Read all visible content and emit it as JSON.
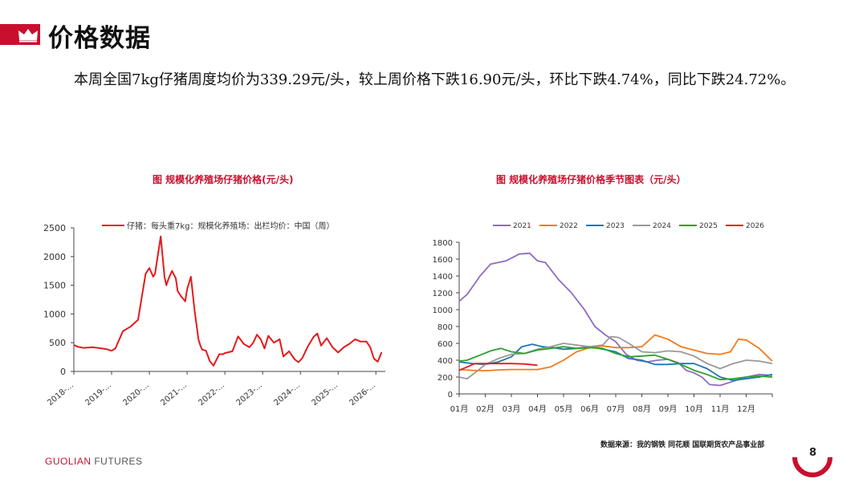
{
  "header": {
    "title": "价格数据"
  },
  "summary": "本周全国7kg仔猪周度均价为339.29元/头，较上周价格下跌16.90元/头，环比下跌4.74%，同比下跌24.72%。",
  "footer": {
    "brand_red": "GUOLIAN",
    "brand_gray": " FUTURES",
    "page": "8",
    "source": "数据来源：我的钢铁  同花顺  国联期货农产品事业部"
  },
  "colors": {
    "accent": "#c8102e"
  },
  "chart_data": [
    {
      "type": "line",
      "title": "图    规模化养殖场仔猪价格(元/头)",
      "legend": "仔猪：每头重7kg：规模化养殖场：出栏均价：中国（周）",
      "legend_position": "top-right",
      "color": "#e41a1c",
      "x_tick_labels": [
        "2018-...",
        "2019-...",
        "2020-...",
        "2021-...",
        "2022-...",
        "2023-...",
        "2024-...",
        "2025-...",
        "2026-..."
      ],
      "x_tick_values": [
        2018.0,
        2019.0,
        2020.0,
        2021.0,
        2022.0,
        2023.0,
        2024.0,
        2025.0,
        2026.0
      ],
      "xlim": [
        2018.0,
        2026.25
      ],
      "ylim": [
        0,
        2500
      ],
      "y_ticks": [
        0,
        500,
        1000,
        1500,
        2000,
        2500
      ],
      "x": [
        2018.0,
        2018.1,
        2018.25,
        2018.5,
        2018.75,
        2018.85,
        2019.0,
        2019.1,
        2019.3,
        2019.5,
        2019.7,
        2019.8,
        2019.9,
        2020.0,
        2020.1,
        2020.15,
        2020.3,
        2020.4,
        2020.45,
        2020.5,
        2020.6,
        2020.7,
        2020.75,
        2020.85,
        2020.95,
        2021.0,
        2021.1,
        2021.2,
        2021.3,
        2021.35,
        2021.4,
        2021.5,
        2021.6,
        2021.7,
        2021.85,
        2021.95,
        2022.0,
        2022.2,
        2022.35,
        2022.5,
        2022.65,
        2022.75,
        2022.85,
        2022.95,
        2023.05,
        2023.15,
        2023.3,
        2023.45,
        2023.55,
        2023.7,
        2023.85,
        2023.95,
        2024.05,
        2024.2,
        2024.35,
        2024.45,
        2024.55,
        2024.7,
        2024.85,
        2025.0,
        2025.15,
        2025.3,
        2025.45,
        2025.6,
        2025.75,
        2025.85,
        2025.95,
        2026.05,
        2026.15
      ],
      "values": [
        460,
        430,
        410,
        420,
        400,
        390,
        360,
        400,
        700,
        780,
        900,
        1300,
        1700,
        1800,
        1650,
        1700,
        2350,
        1650,
        1500,
        1600,
        1750,
        1620,
        1400,
        1300,
        1220,
        1430,
        1650,
        1050,
        560,
        450,
        380,
        360,
        180,
        100,
        300,
        300,
        320,
        350,
        610,
        480,
        420,
        500,
        640,
        560,
        400,
        620,
        500,
        560,
        260,
        350,
        210,
        160,
        230,
        440,
        600,
        660,
        450,
        580,
        420,
        330,
        420,
        480,
        560,
        520,
        520,
        420,
        220,
        170,
        330
      ]
    },
    {
      "type": "line",
      "title": "图  规模化养殖场仔猪价格季节图表（元/头）",
      "categories": [
        "01月",
        "02月",
        "03月",
        "04月",
        "05月",
        "06月",
        "07月",
        "08月",
        "09月",
        "10月",
        "11月",
        "12月"
      ],
      "ylim": [
        0,
        1800
      ],
      "y_ticks": [
        0,
        200,
        400,
        600,
        800,
        1000,
        1200,
        1400,
        1600,
        1800
      ],
      "legend_position": "top",
      "series": [
        {
          "name": "2021",
          "color": "#8e6cbf",
          "x": [
            0,
            0.3,
            0.8,
            1.2,
            1.8,
            2.3,
            2.7,
            3.0,
            3.3,
            3.8,
            4.3,
            4.8,
            5.2,
            5.6,
            6.0,
            6.4,
            6.8,
            7.2,
            7.6,
            8.0,
            8.4,
            8.7,
            9.0,
            9.3,
            9.6,
            10.0,
            10.5,
            11.0,
            11.5,
            12.0
          ],
          "values": [
            1100,
            1180,
            1400,
            1540,
            1580,
            1660,
            1670,
            1580,
            1560,
            1360,
            1200,
            1000,
            800,
            700,
            620,
            470,
            400,
            380,
            400,
            410,
            370,
            280,
            250,
            200,
            110,
            100,
            150,
            200,
            230,
            220
          ]
        },
        {
          "name": "2022",
          "color": "#f07c1b",
          "x": [
            0,
            0.5,
            1.0,
            1.5,
            2.0,
            2.5,
            3.0,
            3.5,
            4.0,
            4.5,
            5.0,
            5.5,
            6.0,
            6.5,
            7.0,
            7.5,
            8.0,
            8.5,
            9.0,
            9.5,
            10.0,
            10.4,
            10.7,
            11.0,
            11.5,
            12.0
          ],
          "values": [
            290,
            280,
            275,
            285,
            290,
            290,
            290,
            320,
            400,
            500,
            550,
            570,
            550,
            550,
            560,
            700,
            650,
            560,
            520,
            480,
            470,
            500,
            650,
            640,
            540,
            390
          ]
        },
        {
          "name": "2023",
          "color": "#1f77b4",
          "x": [
            0,
            0.5,
            1.0,
            1.5,
            2.0,
            2.4,
            2.8,
            3.2,
            3.6,
            4.0,
            4.5,
            5.0,
            5.5,
            6.0,
            6.5,
            7.0,
            7.5,
            8.0,
            8.5,
            9.0,
            9.5,
            10.0,
            10.5,
            11.0,
            11.5,
            12.0
          ],
          "values": [
            380,
            360,
            350,
            380,
            440,
            560,
            590,
            560,
            550,
            530,
            540,
            560,
            530,
            500,
            420,
            400,
            350,
            350,
            360,
            360,
            300,
            200,
            160,
            180,
            200,
            230
          ]
        },
        {
          "name": "2024",
          "color": "#999999",
          "x": [
            0,
            0.3,
            0.6,
            1.0,
            1.5,
            2.0,
            2.5,
            3.0,
            3.5,
            4.0,
            4.5,
            5.0,
            5.5,
            5.8,
            6.1,
            6.5,
            7.0,
            7.5,
            8.0,
            8.5,
            9.0,
            9.5,
            10.0,
            10.5,
            11.0,
            11.5,
            12.0
          ],
          "values": [
            200,
            180,
            250,
            350,
            420,
            470,
            480,
            530,
            560,
            600,
            580,
            560,
            580,
            680,
            670,
            600,
            500,
            490,
            510,
            500,
            450,
            360,
            300,
            360,
            400,
            390,
            360
          ]
        },
        {
          "name": "2025",
          "color": "#2ca02c",
          "x": [
            0,
            0.3,
            0.8,
            1.2,
            1.6,
            2.0,
            2.5,
            3.0,
            3.5,
            4.0,
            4.5,
            5.0,
            5.5,
            6.0,
            6.5,
            7.0,
            7.5,
            8.0,
            8.5,
            9.0,
            9.5,
            10.0,
            10.5,
            11.0,
            11.5,
            12.0
          ],
          "values": [
            390,
            400,
            460,
            510,
            540,
            500,
            480,
            520,
            540,
            560,
            540,
            550,
            540,
            480,
            440,
            450,
            460,
            410,
            350,
            280,
            230,
            170,
            180,
            200,
            210,
            200
          ]
        },
        {
          "name": "2026",
          "color": "#e41a1c",
          "x": [
            0,
            0.3,
            0.6,
            1.0,
            1.5,
            2.0,
            2.5,
            3.0
          ],
          "values": [
            280,
            320,
            360,
            360,
            360,
            360,
            355,
            340
          ]
        }
      ]
    }
  ]
}
